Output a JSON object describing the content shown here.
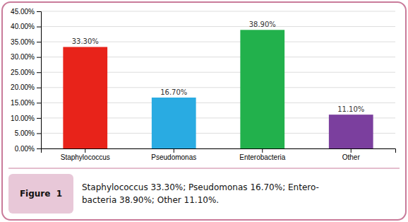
{
  "chart_data": {
    "type": "bar",
    "categories": [
      "Staphylococcus",
      "Pseudomonas",
      "Enterobacteria",
      "Other"
    ],
    "values": [
      0.333,
      0.167,
      0.389,
      0.111
    ],
    "value_labels": [
      "33.30%",
      "16.70%",
      "38.90%",
      "11.10%"
    ],
    "data_labels": true,
    "colors": [
      "#e8231a",
      "#29abe2",
      "#22b14c",
      "#7b3f9e"
    ],
    "ylim": [
      0,
      0.45
    ],
    "yticks": [
      {
        "value": 0.0,
        "label": "0.00%"
      },
      {
        "value": 0.05,
        "label": "5.00%"
      },
      {
        "value": 0.1,
        "label": "10.00%"
      },
      {
        "value": 0.15,
        "label": "15.00%"
      },
      {
        "value": 0.2,
        "label": "20.00%"
      },
      {
        "value": 0.25,
        "label": "25.00%"
      },
      {
        "value": 0.3,
        "label": "30.00%"
      },
      {
        "value": 0.35,
        "label": "35.00%"
      },
      {
        "value": 0.4,
        "label": "40.00%"
      },
      {
        "value": 0.45,
        "label": "45.00%"
      }
    ],
    "grid": true,
    "annotations": [
      "Figure  1",
      "Staphylococcus 33.30%; Pseudomonas 16.70%; Entero-\nbacteria 38.90%; Other 11.10%."
    ]
  }
}
